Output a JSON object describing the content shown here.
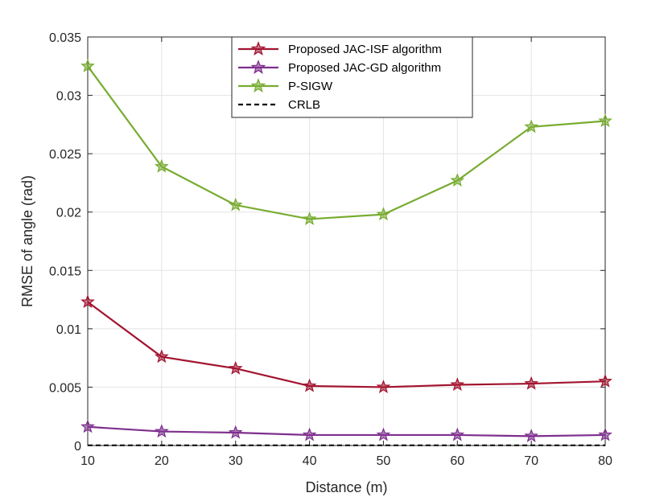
{
  "chart_data": {
    "type": "line",
    "title": "",
    "xlabel": "Distance (m)",
    "ylabel": "RMSE of angle (rad)",
    "x": [
      10,
      20,
      30,
      40,
      50,
      60,
      70,
      80
    ],
    "xlim": [
      10,
      80
    ],
    "ylim": [
      0,
      0.035
    ],
    "xticks": [
      "10",
      "20",
      "30",
      "40",
      "50",
      "60",
      "70",
      "80"
    ],
    "yticks": [
      "0",
      "0.005",
      "0.01",
      "0.015",
      "0.02",
      "0.025",
      "0.03",
      "0.035"
    ],
    "ytick_values": [
      0,
      0.005,
      0.01,
      0.015,
      0.02,
      0.025,
      0.03,
      0.035
    ],
    "grid": true,
    "legend_position": "top-center",
    "series": [
      {
        "name": "Proposed JAC-ISF algorithm",
        "color": "#a2142f",
        "marker": "star",
        "dashed": false,
        "values": [
          0.0123,
          0.0076,
          0.0066,
          0.0051,
          0.005,
          0.0052,
          0.0053,
          0.0055
        ]
      },
      {
        "name": "Proposed JAC-GD algorithm",
        "color": "#7e2f8e",
        "marker": "star",
        "dashed": false,
        "values": [
          0.0016,
          0.0012,
          0.0011,
          0.0009,
          0.0009,
          0.0009,
          0.0008,
          0.0009
        ]
      },
      {
        "name": "P-SIGW",
        "color": "#77ac30",
        "marker": "star",
        "dashed": false,
        "values": [
          0.0325,
          0.0239,
          0.0206,
          0.0194,
          0.0198,
          0.0227,
          0.0273,
          0.0278
        ]
      },
      {
        "name": "CRLB",
        "color": "#000000",
        "marker": "none",
        "dashed": true,
        "values": [
          2e-05,
          2e-05,
          2e-05,
          2e-05,
          2e-05,
          2e-05,
          2e-05,
          2e-05
        ]
      }
    ]
  }
}
